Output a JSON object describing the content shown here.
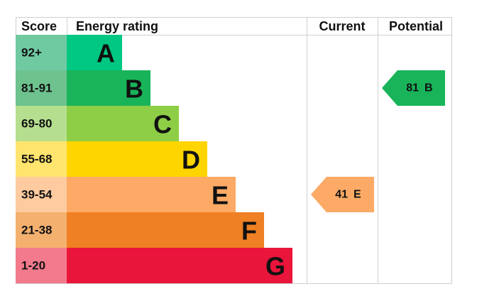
{
  "header": {
    "score": "Score",
    "rating": "Energy rating",
    "current": "Current",
    "potential": "Potential"
  },
  "bands": [
    {
      "score": "92+",
      "letter": "A",
      "color": "#00c781",
      "score_color": "#6fcaa2"
    },
    {
      "score": "81-91",
      "letter": "B",
      "color": "#19b459",
      "score_color": "#6dc28e"
    },
    {
      "score": "69-80",
      "letter": "C",
      "color": "#8dce46",
      "score_color": "#b5df8f"
    },
    {
      "score": "55-68",
      "letter": "D",
      "color": "#ffd500",
      "score_color": "#ffe46d"
    },
    {
      "score": "39-54",
      "letter": "E",
      "color": "#fcaa65",
      "score_color": "#fdcb9f"
    },
    {
      "score": "21-38",
      "letter": "F",
      "color": "#ef8023",
      "score_color": "#f4b06f"
    },
    {
      "score": "1-20",
      "letter": "G",
      "color": "#e9153b",
      "score_color": "#f27a8c"
    }
  ],
  "current": {
    "value": 41,
    "letter": "E"
  },
  "potential": {
    "value": 81,
    "letter": "B"
  }
}
